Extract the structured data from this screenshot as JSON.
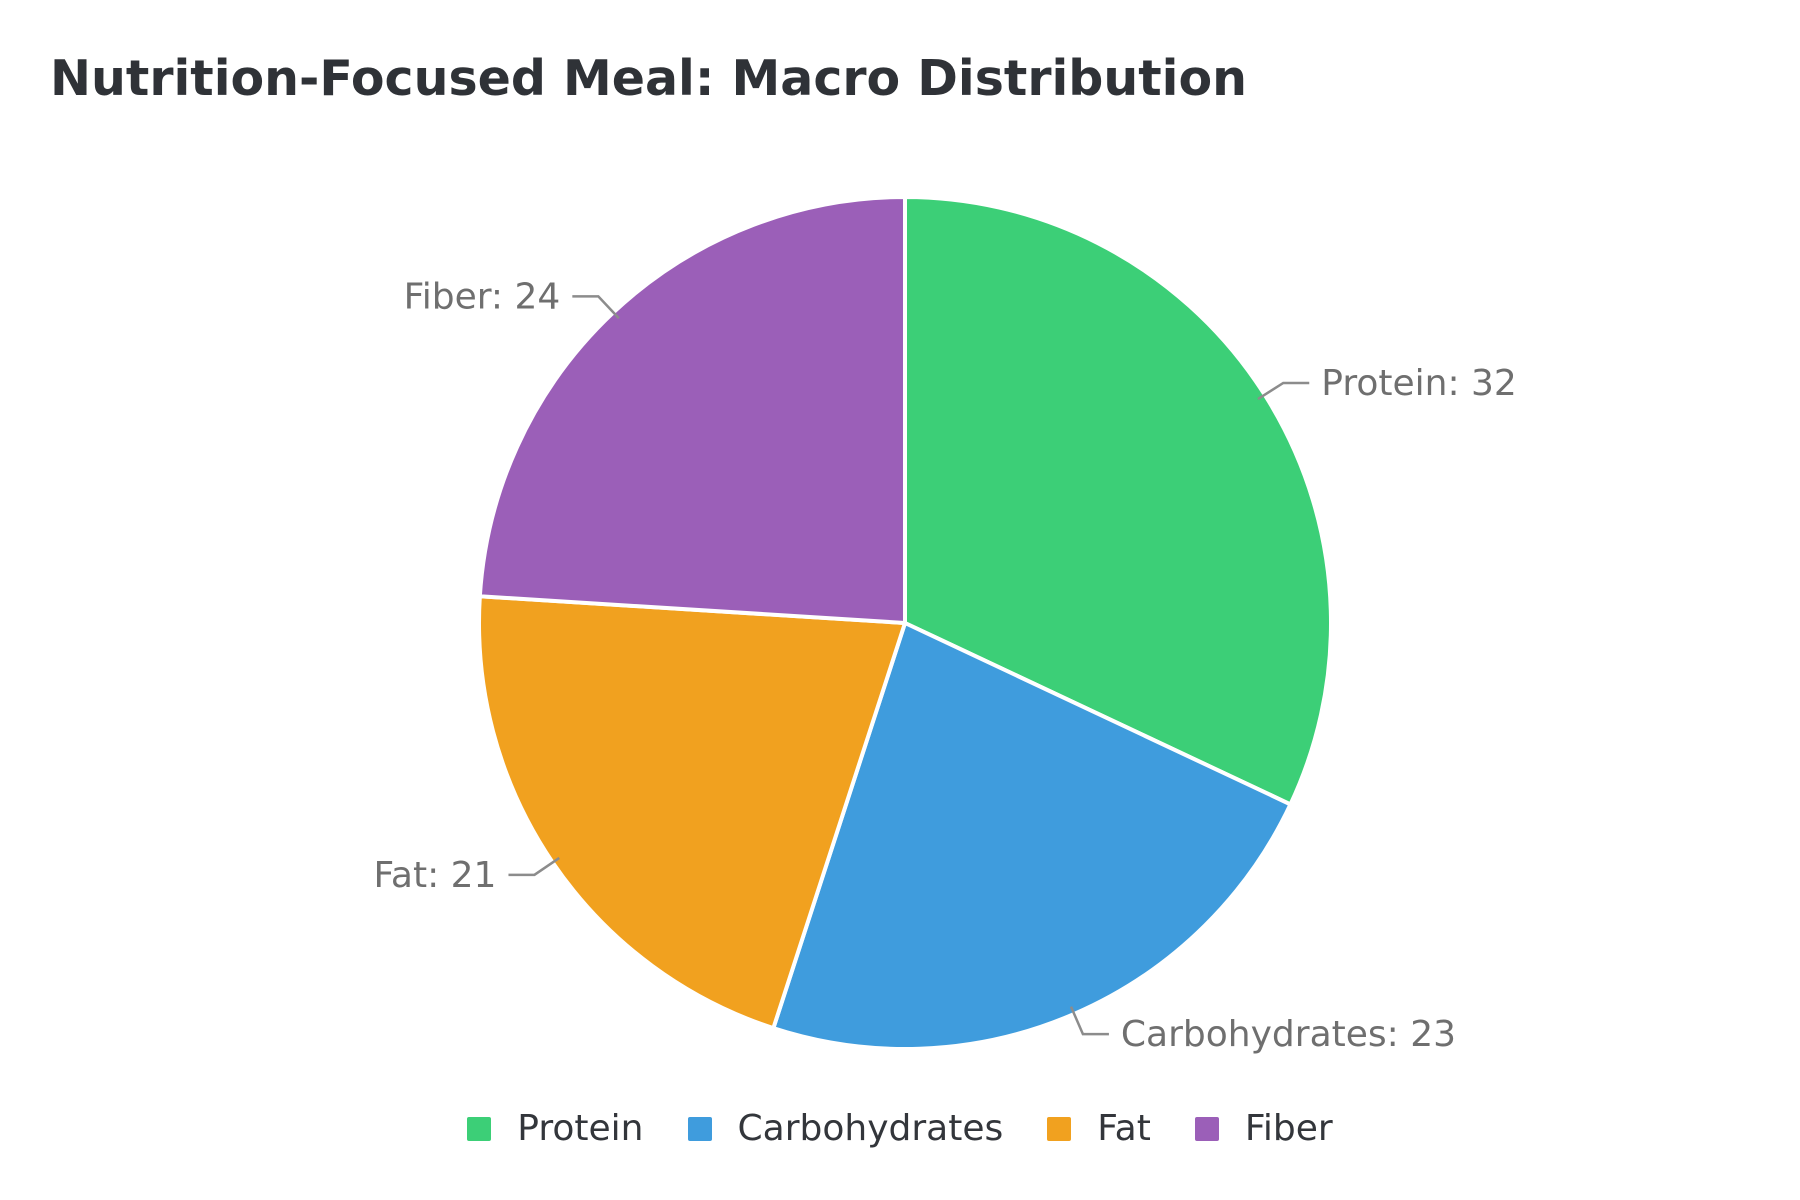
{
  "chart_data": {
    "type": "pie",
    "title": "Nutrition-Focused Meal: Macro Distribution",
    "categories": [
      "Protein",
      "Carbohydrates",
      "Fat",
      "Fiber"
    ],
    "values": [
      32,
      23,
      21,
      24
    ],
    "colors": [
      "#3ccf77",
      "#3f9cdd",
      "#f1a11f",
      "#9b5fb8"
    ],
    "slice_labels": [
      "Protein: 32",
      "Carbohydrates: 23",
      "Fat: 21",
      "Fiber: 24"
    ],
    "legend": {
      "position": "bottom",
      "entries": [
        "Protein",
        "Carbohydrates",
        "Fat",
        "Fiber"
      ]
    }
  }
}
